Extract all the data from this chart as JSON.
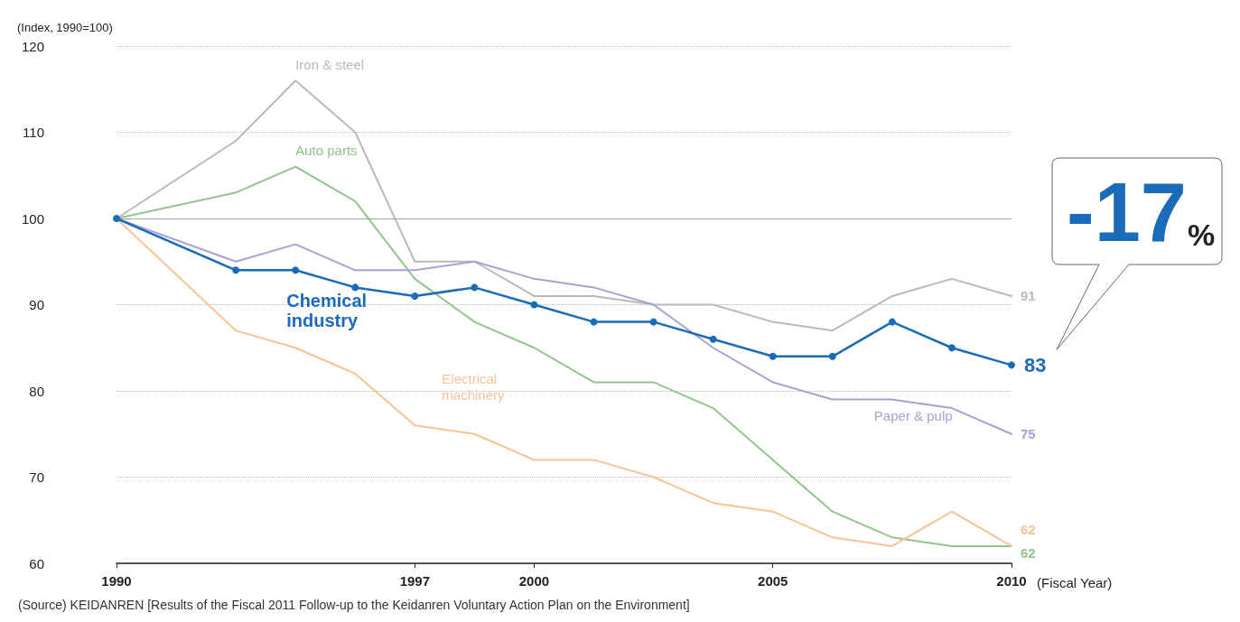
{
  "chart_data": {
    "type": "line",
    "ylabel": "(Index, 1990=100)",
    "xlabel": "(Fiscal Year)",
    "categories": [
      "1990",
      null,
      null,
      null,
      null,
      "1997",
      null,
      "2000",
      null,
      null,
      null,
      "2005",
      null,
      null,
      null,
      "2010"
    ],
    "ylim": [
      60,
      120
    ],
    "yticks": [
      60,
      70,
      80,
      90,
      100,
      110,
      120
    ],
    "grid": "y",
    "legend": false,
    "line_style": "solid",
    "ref_lines": [
      {
        "axis": "y",
        "value": 100,
        "color": "#a0a0a0"
      }
    ],
    "series": [
      {
        "name": "Iron & steel",
        "color": "#b9b9b9",
        "marker": "none",
        "values": [
          100,
          null,
          109,
          116,
          110,
          95,
          95,
          91,
          91,
          90,
          90,
          88,
          87,
          91,
          93,
          91
        ],
        "value_labels": [
          null,
          null,
          null,
          null,
          null,
          null,
          null,
          null,
          null,
          null,
          null,
          null,
          null,
          null,
          null,
          "91"
        ]
      },
      {
        "name": "Auto parts",
        "color": "#92c48d",
        "marker": "none",
        "values": [
          100,
          null,
          103,
          106,
          102,
          93,
          88,
          85,
          81,
          81,
          78,
          72,
          66,
          63,
          62,
          62
        ],
        "value_labels": [
          null,
          null,
          null,
          null,
          null,
          null,
          null,
          null,
          null,
          null,
          null,
          null,
          null,
          null,
          null,
          "62"
        ]
      },
      {
        "name": "Paper & pulp",
        "color": "#a6a2d3",
        "marker": "none",
        "values": [
          100,
          null,
          95,
          97,
          94,
          94,
          95,
          93,
          92,
          90,
          85,
          81,
          79,
          79,
          78,
          75
        ],
        "value_labels": [
          null,
          null,
          null,
          null,
          null,
          null,
          null,
          null,
          null,
          null,
          null,
          null,
          null,
          null,
          null,
          "75"
        ]
      },
      {
        "name": "Electrical machinery",
        "color": "#f6c393",
        "marker": "none",
        "values": [
          100,
          null,
          87,
          85,
          82,
          76,
          75,
          72,
          72,
          70,
          67,
          66,
          63,
          62,
          66,
          62
        ],
        "value_labels": [
          null,
          null,
          null,
          null,
          null,
          null,
          null,
          null,
          null,
          null,
          null,
          null,
          null,
          null,
          null,
          "62"
        ]
      },
      {
        "name": "Chemical industry",
        "color": "#1a6bb8",
        "marker": "circle",
        "values": [
          100,
          null,
          94,
          94,
          92,
          91,
          92,
          90,
          88,
          88,
          86,
          84,
          84,
          88,
          85,
          83
        ],
        "value_labels": [
          null,
          null,
          null,
          null,
          null,
          null,
          null,
          null,
          null,
          null,
          null,
          null,
          null,
          null,
          null,
          "83"
        ]
      }
    ],
    "annotations": [
      {
        "text": "-17%",
        "x": "2010",
        "y": 83
      },
      "(Source) KEIDANREN [Results of the Fiscal 2011 Follow-up to the Keidanren Voluntary Action Plan on the Environment]"
    ]
  }
}
